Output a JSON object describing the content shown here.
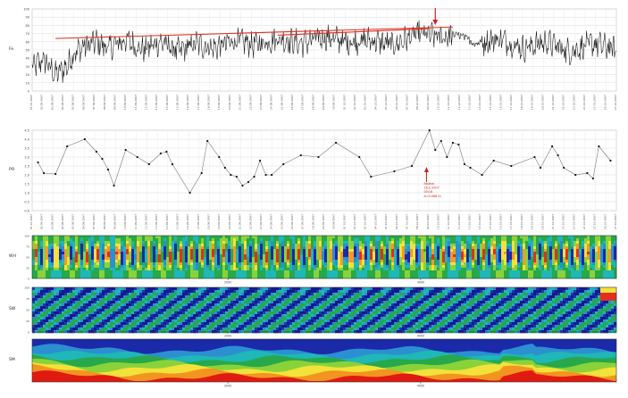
{
  "chart_data": [
    {
      "type": "line",
      "panel": "top-time-series",
      "ylabel": "Fe",
      "ylim": [
        0,
        100
      ],
      "yticks": [
        0,
        10,
        20,
        30,
        40,
        50,
        60,
        70,
        80,
        90,
        100
      ],
      "grid": true,
      "xticks": [
        "01.01.2007",
        "02.09.2007",
        "03.08.2007",
        "04.08.2007",
        "05.08.2007",
        "06.08.2007",
        "07.09.2007",
        "08.09.2007",
        "09.09.2007",
        "10.09.2007",
        "11.09.2007",
        "12.09.2007",
        "13.09.2007",
        "14.09.2007",
        "15.09.2007",
        "16.09.2007",
        "17.09.2007",
        "18.09.2007",
        "19.09.2007",
        "20.09.2007",
        "21.09.2007",
        "22.09.2007",
        "23.09.2007",
        "24.09.2007",
        "25.09.2007",
        "26.09.2007",
        "27.09.2007",
        "28.09.2007",
        "29.09.2007",
        "30.09.2007",
        "01.10.2007",
        "02.10.2007",
        "03.10.2007",
        "04.10.2007",
        "05.10.2007",
        "06.10.2007",
        "07.10.2007",
        "08.10.2007",
        "09.10.2007",
        "10.10.2007",
        "11.10.2007",
        "12.10.2007",
        "13.10.2007",
        "14.10.2007",
        "15.10.2007",
        "16.10.2007",
        "17.10.2007",
        "18.10.2007",
        "19.10.2007",
        "20.10.2007",
        "21.10.2007",
        "22.10.2007",
        "23.10.2007",
        "24.10.2007",
        "25.10.2007",
        "26.10.2007",
        "27.10.2007"
      ],
      "series_profile": [
        [
          0,
          28
        ],
        [
          0.02,
          38
        ],
        [
          0.04,
          20
        ],
        [
          0.06,
          30
        ],
        [
          0.07,
          45
        ],
        [
          0.09,
          55
        ],
        [
          0.11,
          60
        ],
        [
          0.13,
          52
        ],
        [
          0.16,
          62
        ],
        [
          0.19,
          50
        ],
        [
          0.22,
          60
        ],
        [
          0.25,
          48
        ],
        [
          0.28,
          58
        ],
        [
          0.31,
          52
        ],
        [
          0.35,
          62
        ],
        [
          0.38,
          56
        ],
        [
          0.42,
          64
        ],
        [
          0.46,
          58
        ],
        [
          0.5,
          66
        ],
        [
          0.54,
          60
        ],
        [
          0.58,
          62
        ],
        [
          0.62,
          56
        ],
        [
          0.66,
          70
        ],
        [
          0.7,
          66
        ],
        [
          0.73,
          68
        ],
        [
          0.76,
          58
        ],
        [
          0.8,
          64
        ],
        [
          0.84,
          52
        ],
        [
          0.88,
          60
        ],
        [
          0.92,
          48
        ],
        [
          0.96,
          58
        ],
        [
          1,
          50
        ]
      ],
      "trend_lines": [
        {
          "color": "#e03020",
          "from": [
            0.04,
            64
          ],
          "to": [
            0.72,
            78
          ]
        },
        {
          "color": "#e03020",
          "from": [
            0.42,
            68
          ],
          "to": [
            0.68,
            76
          ]
        }
      ],
      "annotation_arrow": {
        "color": "#cc2222",
        "x": 0.69
      }
    },
    {
      "type": "scatter",
      "panel": "middle-scatter",
      "ylabel": "PO",
      "ylim": [
        0.0,
        4.5
      ],
      "yticks": [
        "0.0",
        "0.5",
        "1.0",
        "1.5",
        "2.0",
        "2.5",
        "3.0",
        "3.5",
        "4.0",
        "4.5"
      ],
      "grid": true,
      "connected": true,
      "points": [
        [
          0.01,
          2.7
        ],
        [
          0.02,
          2.1
        ],
        [
          0.04,
          2.05
        ],
        [
          0.06,
          3.6
        ],
        [
          0.09,
          4.0
        ],
        [
          0.11,
          3.3
        ],
        [
          0.12,
          2.9
        ],
        [
          0.13,
          2.3
        ],
        [
          0.14,
          1.4
        ],
        [
          0.16,
          3.4
        ],
        [
          0.18,
          3.0
        ],
        [
          0.2,
          2.6
        ],
        [
          0.22,
          3.2
        ],
        [
          0.23,
          3.3
        ],
        [
          0.24,
          2.6
        ],
        [
          0.27,
          1.0
        ],
        [
          0.29,
          2.1
        ],
        [
          0.3,
          3.9
        ],
        [
          0.32,
          3.0
        ],
        [
          0.33,
          2.4
        ],
        [
          0.34,
          2.0
        ],
        [
          0.35,
          1.9
        ],
        [
          0.36,
          1.4
        ],
        [
          0.37,
          1.6
        ],
        [
          0.38,
          1.9
        ],
        [
          0.39,
          2.8
        ],
        [
          0.4,
          2.0
        ],
        [
          0.41,
          2.0
        ],
        [
          0.43,
          2.6
        ],
        [
          0.46,
          3.1
        ],
        [
          0.49,
          3.0
        ],
        [
          0.52,
          3.8
        ],
        [
          0.56,
          3.0
        ],
        [
          0.58,
          1.9
        ],
        [
          0.62,
          2.2
        ],
        [
          0.65,
          2.5
        ],
        [
          0.68,
          4.5
        ],
        [
          0.69,
          3.4
        ],
        [
          0.7,
          3.9
        ],
        [
          0.71,
          3.0
        ],
        [
          0.72,
          3.8
        ],
        [
          0.73,
          3.7
        ],
        [
          0.74,
          2.6
        ],
        [
          0.75,
          2.4
        ],
        [
          0.77,
          2.0
        ],
        [
          0.79,
          2.8
        ],
        [
          0.82,
          2.5
        ],
        [
          0.86,
          3.0
        ],
        [
          0.87,
          2.4
        ],
        [
          0.89,
          3.6
        ],
        [
          0.9,
          3.1
        ],
        [
          0.91,
          2.4
        ],
        [
          0.93,
          2.0
        ],
        [
          0.95,
          2.1
        ],
        [
          0.96,
          1.8
        ],
        [
          0.97,
          3.6
        ],
        [
          0.99,
          2.8
        ]
      ],
      "annotation": {
        "color": "#cc2222",
        "lines": [
          "Falaise",
          "16.0.2007",
          "00:16",
          "Δ=0.088 m"
        ]
      }
    },
    {
      "type": "heatmap",
      "panel": "wavelet-1",
      "ylabel": "WH",
      "palette": [
        "#1a2aa8",
        "#2b8fd0",
        "#1fb7b7",
        "#27a84a",
        "#8ad23a",
        "#f2e23a",
        "#f29a2a",
        "#e03020"
      ],
      "xticks": [
        "2000",
        "4000"
      ]
    },
    {
      "type": "heatmap",
      "panel": "wavelet-2",
      "ylabel": "SW",
      "palette": [
        "#141a90",
        "#1e3aa8",
        "#2b8fd0",
        "#1fb7b7",
        "#27a84a",
        "#f2e23a",
        "#e03020"
      ],
      "xticks": [
        "2000",
        "4000"
      ]
    },
    {
      "type": "area",
      "panel": "stacked-bands",
      "ylabel": "SM",
      "layers": [
        "#e01a10",
        "#f29420",
        "#f2e23a",
        "#8ad23a",
        "#27a84a",
        "#1fb7b7",
        "#2b8fd0",
        "#1a2aa8"
      ],
      "xticks": [
        "2000",
        "4000"
      ]
    }
  ]
}
